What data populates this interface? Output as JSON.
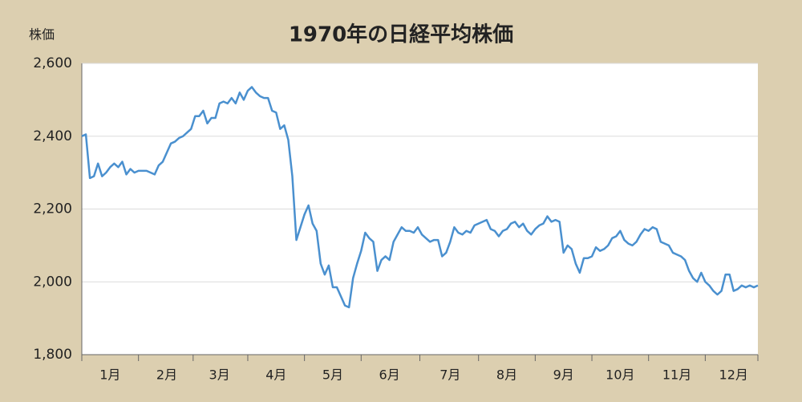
{
  "chart_data": {
    "type": "line",
    "title": "1970年の日経平均株価",
    "y_label": "株価",
    "categories": [
      null,
      null,
      null,
      null,
      null,
      null,
      null,
      "1月",
      null,
      null,
      null,
      null,
      null,
      null,
      null,
      null,
      null,
      null,
      null,
      null,
      null,
      "2月",
      null,
      null,
      null,
      null,
      null,
      null,
      null,
      null,
      null,
      null,
      null,
      null,
      "3月",
      null,
      null,
      null,
      null,
      null,
      null,
      null,
      null,
      null,
      null,
      null,
      null,
      null,
      "4月",
      null,
      null,
      null,
      null,
      null,
      null,
      null,
      null,
      null,
      null,
      null,
      null,
      null,
      "5月",
      null,
      null,
      null,
      null,
      null,
      null,
      null,
      null,
      null,
      null,
      null,
      null,
      null,
      "6月",
      null,
      null,
      null,
      null,
      null,
      null,
      null,
      null,
      null,
      null,
      null,
      null,
      null,
      null,
      "7月",
      null,
      null,
      null,
      null,
      null,
      null,
      null,
      null,
      null,
      null,
      null,
      null,
      null,
      "8月",
      null,
      null,
      null,
      null,
      null,
      null,
      null,
      null,
      null,
      null,
      null,
      null,
      null,
      "9月",
      null,
      null,
      null,
      null,
      null,
      null,
      null,
      null,
      null,
      null,
      null,
      null,
      null,
      "10月",
      null,
      null,
      null,
      null,
      null,
      null,
      null,
      null,
      null,
      null,
      null,
      null,
      null,
      "11月",
      null,
      null,
      null,
      null,
      null,
      null,
      null,
      null,
      null,
      null,
      null,
      null,
      null,
      "12月",
      null,
      null,
      null,
      null,
      null,
      null
    ],
    "series": [
      {
        "name": "日経平均株価",
        "color": "#4a90cf",
        "values": [
          2400,
          2405,
          2285,
          2290,
          2325,
          2290,
          2300,
          2315,
          2325,
          2315,
          2330,
          2295,
          2310,
          2300,
          2305,
          2305,
          2305,
          2300,
          2295,
          2320,
          2330,
          2355,
          2380,
          2385,
          2395,
          2400,
          2410,
          2420,
          2455,
          2455,
          2470,
          2435,
          2450,
          2450,
          2490,
          2495,
          2490,
          2505,
          2490,
          2520,
          2500,
          2525,
          2535,
          2520,
          2510,
          2505,
          2505,
          2470,
          2465,
          2420,
          2430,
          2390,
          2290,
          2115,
          2150,
          2185,
          2210,
          2160,
          2140,
          2050,
          2020,
          2045,
          1985,
          1985,
          1960,
          1935,
          1930,
          2010,
          2050,
          2085,
          2135,
          2120,
          2110,
          2030,
          2060,
          2070,
          2060,
          2110,
          2130,
          2150,
          2140,
          2140,
          2135,
          2150,
          2130,
          2120,
          2110,
          2115,
          2115,
          2070,
          2080,
          2110,
          2150,
          2135,
          2130,
          2140,
          2135,
          2155,
          2160,
          2165,
          2170,
          2145,
          2140,
          2125,
          2140,
          2145,
          2160,
          2165,
          2150,
          2160,
          2140,
          2130,
          2145,
          2155,
          2160,
          2180,
          2165,
          2170,
          2165,
          2080,
          2100,
          2090,
          2050,
          2025,
          2065,
          2065,
          2070,
          2095,
          2085,
          2090,
          2100,
          2120,
          2125,
          2140,
          2115,
          2105,
          2100,
          2110,
          2130,
          2145,
          2140,
          2150,
          2145,
          2110,
          2105,
          2100,
          2080,
          2075,
          2070,
          2060,
          2030,
          2010,
          2000,
          2025,
          2000,
          1990,
          1975,
          1965,
          1975,
          2020,
          2020,
          1975,
          1980,
          1990,
          1985,
          1990,
          1985,
          1990
        ]
      }
    ],
    "ylim": [
      1800,
      2600
    ],
    "yticks": [
      {
        "value": 1800,
        "label": "1,800"
      },
      {
        "value": 2000,
        "label": "2,000"
      },
      {
        "value": 2200,
        "label": "2,200"
      },
      {
        "value": 2400,
        "label": "2,400"
      },
      {
        "value": 2600,
        "label": "2,600"
      }
    ],
    "grid": true
  }
}
